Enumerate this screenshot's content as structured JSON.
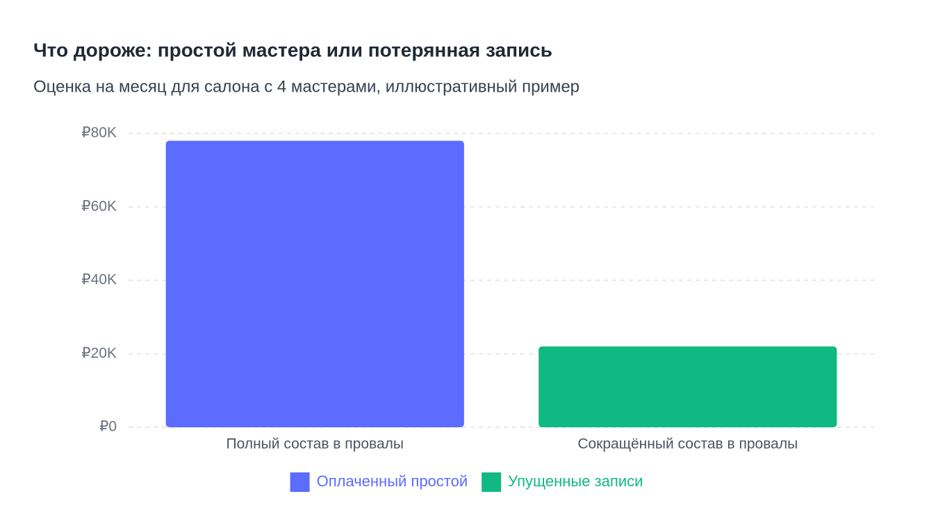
{
  "chart_data": {
    "type": "stacked-bar",
    "title": "Что дороже: простой мастера или потерянная запись",
    "subtitle": "Оценка на месяц для салона с 4 мастерами, иллюстративный пример",
    "categories": [
      "Полный состав в провалы",
      "Сокращённый состав в провалы"
    ],
    "series": [
      {
        "name": "Оплаченный простой",
        "color": "#5b6cff",
        "values": [
          78000,
          0
        ]
      },
      {
        "name": "Упущенные записи",
        "color": "#10b981",
        "values": [
          0,
          22000
        ]
      }
    ],
    "ylim": [
      0,
      80000
    ],
    "yticks": [
      {
        "value": 0,
        "label": "₽0"
      },
      {
        "value": 20000,
        "label": "₽20K"
      },
      {
        "value": 40000,
        "label": "₽40K"
      },
      {
        "value": 60000,
        "label": "₽60K"
      },
      {
        "value": 80000,
        "label": "₽80K"
      }
    ],
    "grid": true,
    "legend": "bottom"
  }
}
